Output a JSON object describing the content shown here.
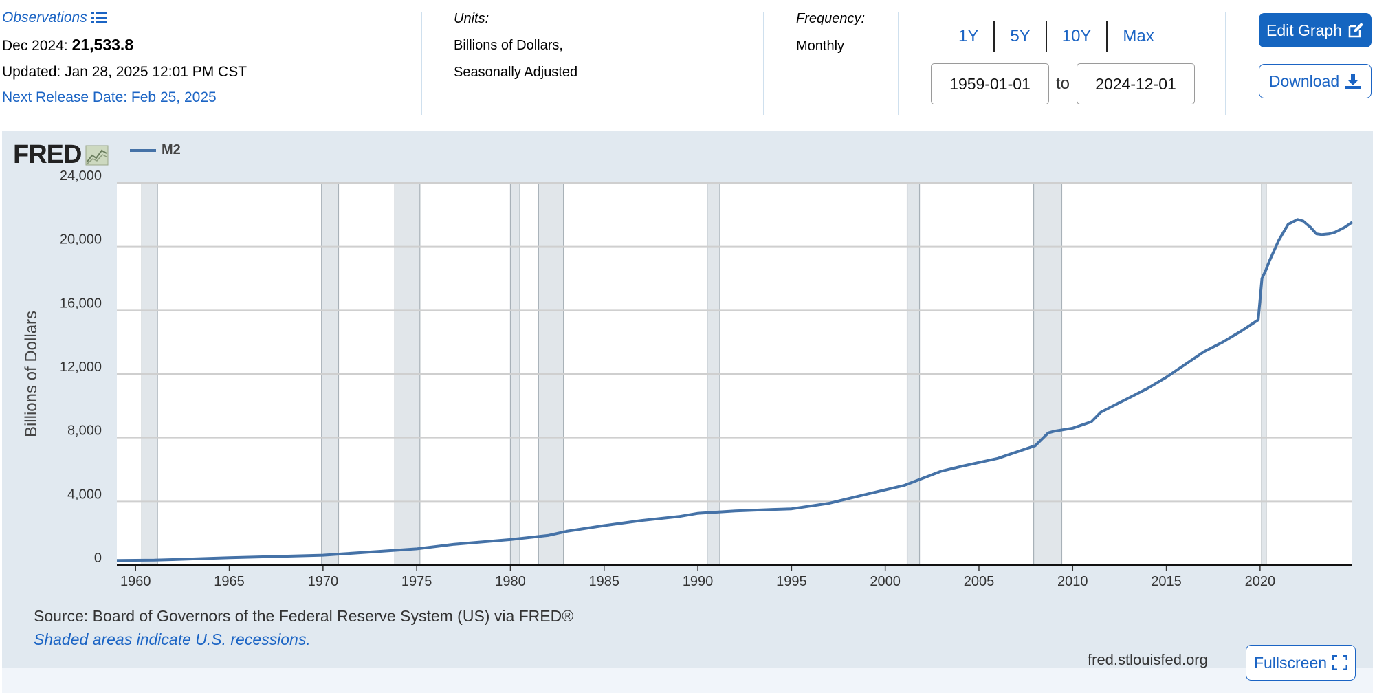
{
  "observations": {
    "label": "Observations",
    "date_label": "Dec 2024:",
    "value": "21,533.8",
    "updated": "Updated: Jan 28, 2025 12:01 PM CST",
    "next_release": "Next Release Date: Feb 25, 2025"
  },
  "units": {
    "label": "Units:",
    "line1": "Billions of Dollars,",
    "line2": "Seasonally Adjusted"
  },
  "frequency": {
    "label": "Frequency:",
    "value": "Monthly"
  },
  "range": {
    "buttons": [
      "1Y",
      "5Y",
      "10Y",
      "Max"
    ],
    "start": "1959-01-01",
    "to_label": "to",
    "end": "2024-12-01"
  },
  "actions": {
    "edit_graph": "Edit Graph",
    "download": "Download",
    "fullscreen": "Fullscreen"
  },
  "graph": {
    "logo": "FRED",
    "legend": "M2",
    "source": "Source: Board of Governors of the Federal Reserve System (US) via FRED®",
    "note": "Shaded areas indicate U.S. recessions.",
    "site": "fred.stlouisfed.org"
  },
  "colors": {
    "series": "#4572a7",
    "recession": "#e1e6ea",
    "panel": "#e1e9f0",
    "accent": "#1565c0"
  },
  "chart_data": {
    "type": "line",
    "title": "",
    "xlabel": "",
    "ylabel": "Billions of Dollars",
    "xlim": [
      1959.0,
      2024.92
    ],
    "ylim": [
      0,
      24000
    ],
    "yticks": [
      0,
      4000,
      8000,
      12000,
      16000,
      20000,
      24000
    ],
    "ytick_labels": [
      "0",
      "4,000",
      "8,000",
      "12,000",
      "16,000",
      "20,000",
      "24,000"
    ],
    "xticks": [
      1960,
      1965,
      1970,
      1975,
      1980,
      1985,
      1990,
      1995,
      2000,
      2005,
      2010,
      2015,
      2020
    ],
    "xtick_labels": [
      "1960",
      "1965",
      "1970",
      "1975",
      "1980",
      "1985",
      "1990",
      "1995",
      "2000",
      "2005",
      "2010",
      "2015",
      "2020"
    ],
    "recessions": [
      [
        1960.33,
        1961.17
      ],
      [
        1969.92,
        1970.83
      ],
      [
        1973.83,
        1975.17
      ],
      [
        1980.0,
        1980.5
      ],
      [
        1981.5,
        1982.83
      ],
      [
        1990.5,
        1991.17
      ],
      [
        2001.17,
        2001.83
      ],
      [
        2007.92,
        2009.42
      ],
      [
        2020.08,
        2020.33
      ]
    ],
    "series": [
      {
        "name": "M2",
        "x": [
          1959.0,
          1961.0,
          1965.0,
          1970.0,
          1971.0,
          1973.0,
          1975.0,
          1977.0,
          1980.0,
          1982.0,
          1983.0,
          1985.0,
          1987.0,
          1989.0,
          1990.0,
          1992.0,
          1994.0,
          1995.0,
          1997.0,
          1999.0,
          2001.0,
          2002.0,
          2003.0,
          2004.0,
          2006.0,
          2008.0,
          2008.7,
          2009.0,
          2010.0,
          2011.0,
          2011.5,
          2012.0,
          2013.0,
          2014.0,
          2015.0,
          2016.0,
          2017.0,
          2018.0,
          2019.0,
          2019.9,
          2020.1,
          2020.3,
          2020.5,
          2021.0,
          2021.5,
          2022.0,
          2022.3,
          2022.7,
          2023.0,
          2023.3,
          2023.7,
          2024.0,
          2024.5,
          2024.92
        ],
        "values": [
          290,
          310,
          460,
          620,
          700,
          860,
          1020,
          1310,
          1600,
          1860,
          2120,
          2480,
          2800,
          3050,
          3250,
          3400,
          3490,
          3530,
          3880,
          4450,
          5000,
          5450,
          5900,
          6180,
          6700,
          7500,
          8300,
          8400,
          8600,
          9000,
          9600,
          9900,
          10500,
          11100,
          11800,
          12600,
          13400,
          14000,
          14700,
          15400,
          18000,
          18500,
          19100,
          20400,
          21400,
          21700,
          21600,
          21200,
          20800,
          20750,
          20800,
          20900,
          21200,
          21533.8
        ]
      }
    ]
  }
}
